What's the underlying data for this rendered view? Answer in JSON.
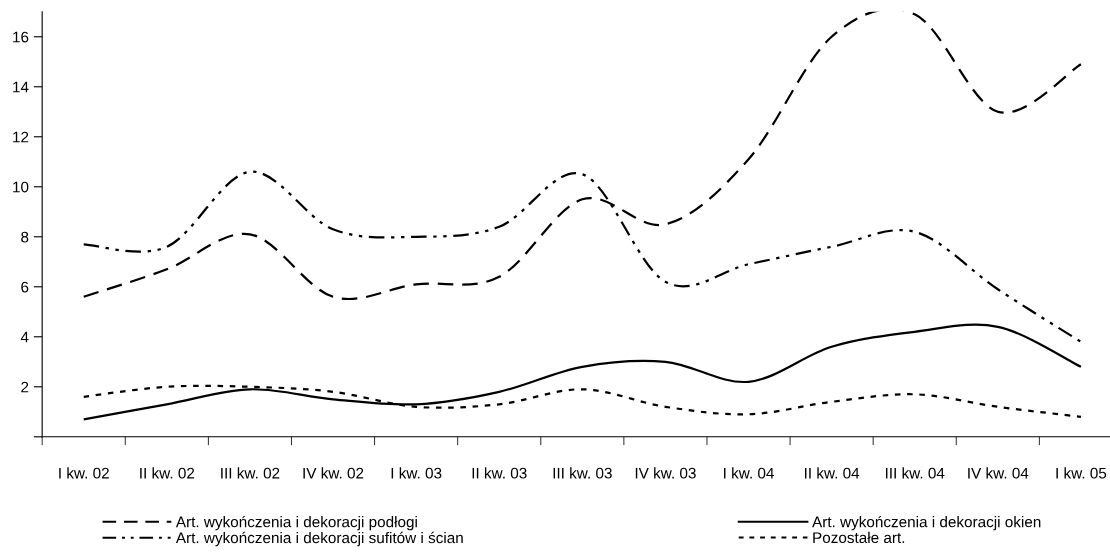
{
  "chart_data": {
    "type": "line",
    "categories": [
      "I kw. 02",
      "II kw. 02",
      "III kw. 02",
      "IV kw. 02",
      "I kw. 03",
      "II kw. 03",
      "III kw. 03",
      "IV kw. 03",
      "I kw. 04",
      "II kw. 04",
      "III kw. 04",
      "IV kw. 04",
      "I kw. 05"
    ],
    "series": [
      {
        "name": "Art. wykończenia i dekoracji podłogi",
        "color": "#000000",
        "line_style": "dashed",
        "values": [
          5.6,
          6.7,
          8.1,
          5.6,
          6.1,
          6.4,
          9.5,
          8.5,
          11.1,
          16.0,
          16.9,
          13.0,
          14.9
        ]
      },
      {
        "name": "Art. wykończenia i dekoracji sufitów i ścian",
        "color": "#000000",
        "line_style": "dashdot",
        "values": [
          7.7,
          7.6,
          10.6,
          8.3,
          8.0,
          8.4,
          10.5,
          6.2,
          6.9,
          7.6,
          8.2,
          5.9,
          3.8
        ]
      },
      {
        "name": "Art. wykończenia i dekoracji okien",
        "color": "#000000",
        "line_style": "solid",
        "values": [
          0.7,
          1.3,
          1.9,
          1.5,
          1.3,
          1.8,
          2.8,
          3.0,
          2.2,
          3.6,
          4.2,
          4.4,
          2.8
        ]
      },
      {
        "name": "Pozostałe art.",
        "color": "#000000",
        "line_style": "dotted",
        "values": [
          1.6,
          2.0,
          2.0,
          1.8,
          1.2,
          1.3,
          1.9,
          1.2,
          0.9,
          1.4,
          1.7,
          1.2,
          0.8
        ]
      }
    ],
    "ylim": [
      0,
      17
    ],
    "yticks": [
      {
        "value": 0,
        "label": null
      },
      2,
      4,
      6,
      8,
      10,
      12,
      14,
      16
    ],
    "grid": false,
    "marker": "none",
    "legend": "bottom"
  }
}
